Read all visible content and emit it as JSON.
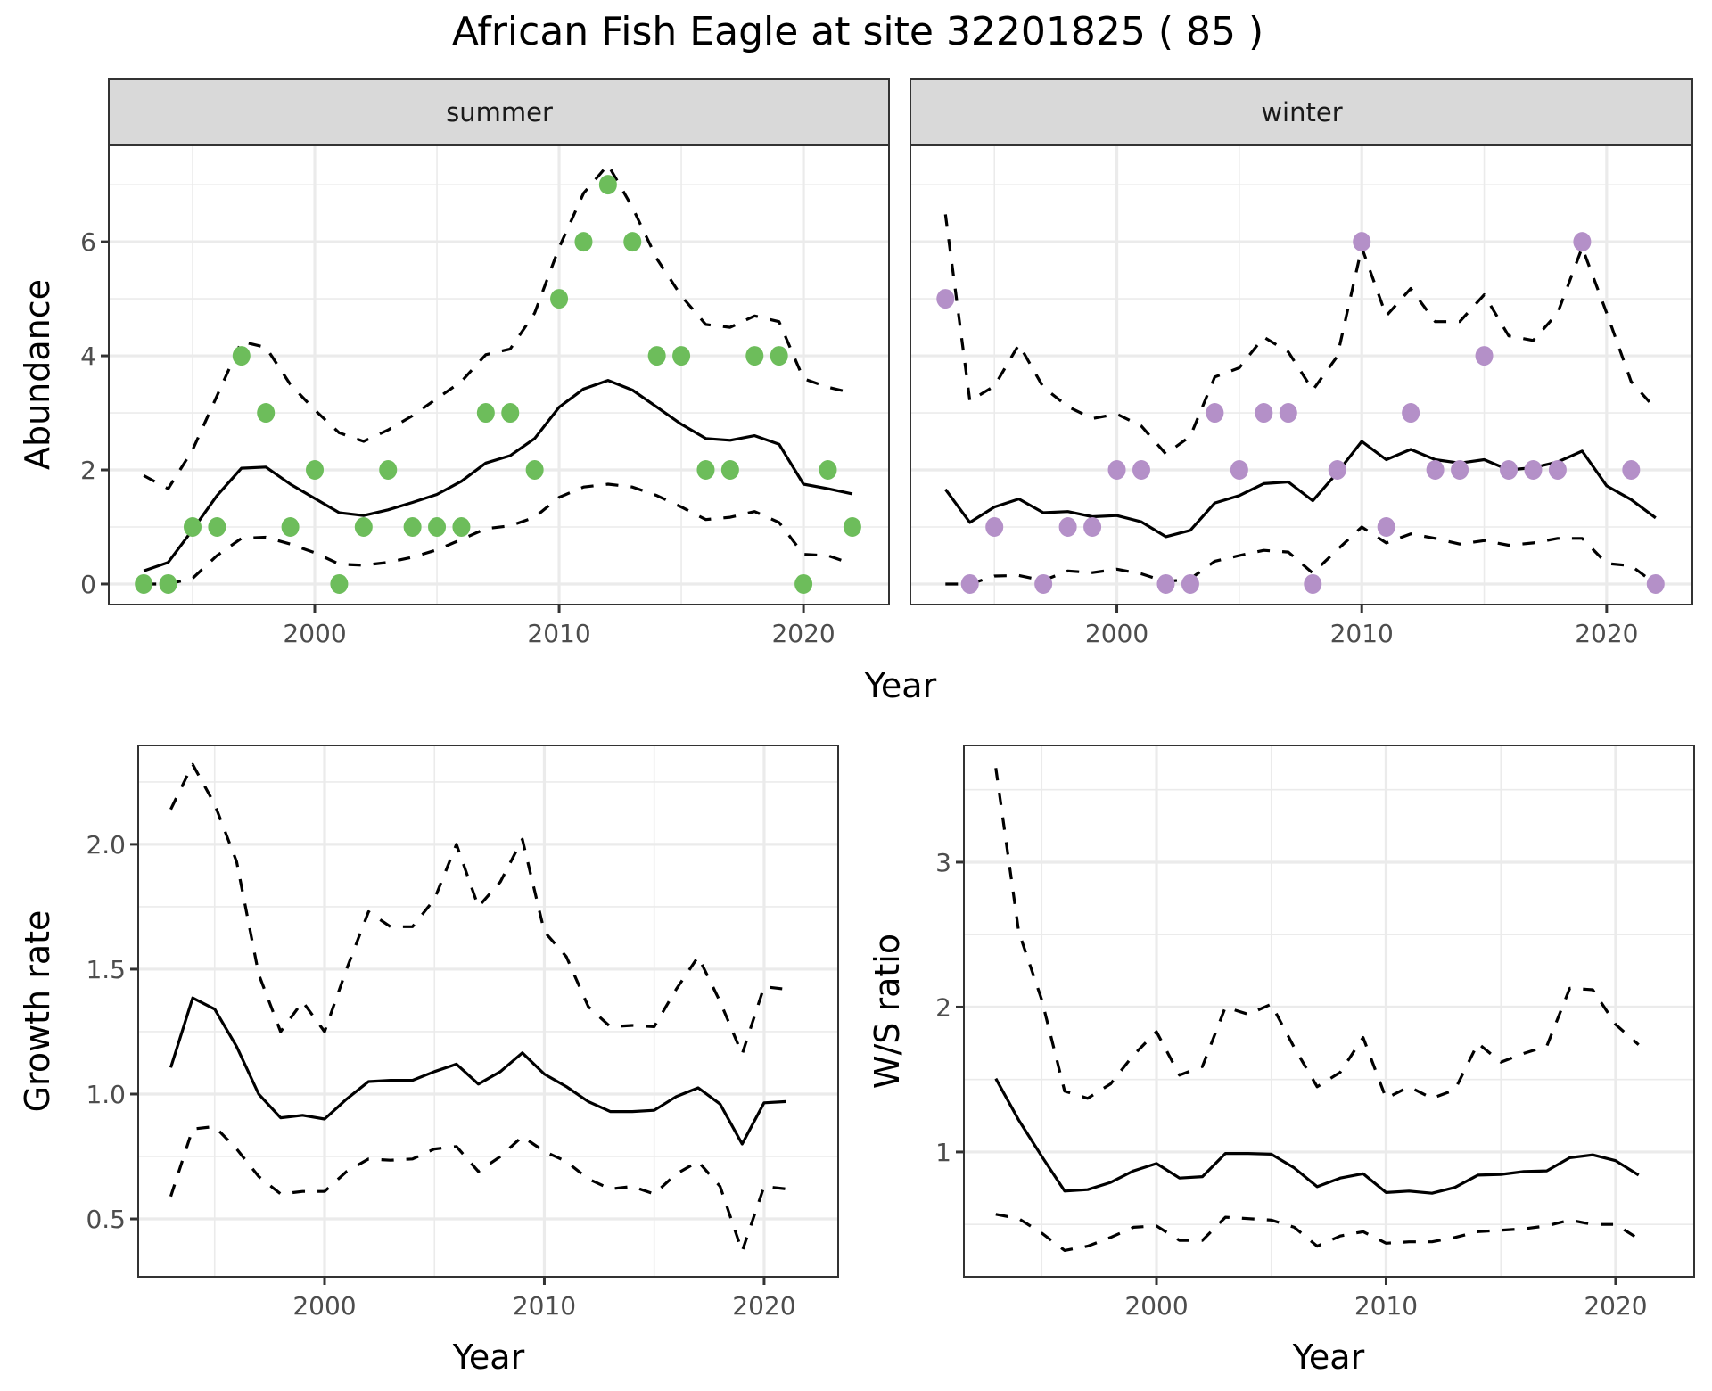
{
  "title": "African Fish Eagle at site 32201825 ( 85 )",
  "colors": {
    "summer_points": "#6DBD5B",
    "winter_points": "#B490C8",
    "lines": "#000000",
    "strip": "#D9D9D9"
  },
  "chart_data": [
    {
      "id": "abundance",
      "type": "scatter+line",
      "title": "African Fish Eagle at site 32201825 ( 85 )",
      "xlabel": "Year",
      "ylabel": "Abundance",
      "facets": [
        "summer",
        "winter"
      ],
      "xlim": [
        1991.57,
        2023.5
      ],
      "ylim": [
        -0.36,
        7.69
      ],
      "x_ticks": [
        2000,
        2010,
        2020
      ],
      "x_tick_labels": [
        "2000",
        "2010",
        "2020"
      ],
      "y_ticks": [
        0,
        2,
        4,
        6
      ],
      "y_tick_labels": [
        "0",
        "2",
        "4",
        "6"
      ],
      "grid": true,
      "legend": "none",
      "panels": [
        {
          "facet": "summer",
          "point_color": "#6DBD5B",
          "points": {
            "x": [
              1993,
              1994,
              1995,
              1996,
              1997,
              1998,
              1999,
              2000,
              2001,
              2002,
              2003,
              2004,
              2005,
              2006,
              2007,
              2008,
              2009,
              2010,
              2011,
              2012,
              2013,
              2014,
              2015,
              2016,
              2017,
              2018,
              2019,
              2020,
              2021,
              2022
            ],
            "y": [
              0,
              0,
              1,
              1,
              4,
              3,
              1,
              2,
              0,
              1,
              2,
              1,
              1,
              1,
              3,
              3,
              2,
              5,
              6,
              7,
              6,
              4,
              4,
              2,
              2,
              4,
              4,
              0,
              2,
              1
            ]
          },
          "years": [
            1993,
            1994,
            1995,
            1996,
            1997,
            1998,
            1999,
            2000,
            2001,
            2002,
            2003,
            2004,
            2005,
            2006,
            2007,
            2008,
            2009,
            2010,
            2011,
            2012,
            2013,
            2014,
            2015,
            2016,
            2017,
            2018,
            2019,
            2020,
            2021,
            2022
          ],
          "mean": [
            0.23,
            0.38,
            0.95,
            1.55,
            2.03,
            2.05,
            1.75,
            1.5,
            1.25,
            1.2,
            1.3,
            1.43,
            1.57,
            1.8,
            2.12,
            2.25,
            2.55,
            3.1,
            3.42,
            3.57,
            3.4,
            3.1,
            2.8,
            2.55,
            2.52,
            2.6,
            2.45,
            1.75,
            1.67,
            1.58
          ],
          "upper": [
            1.9,
            1.67,
            2.35,
            3.3,
            4.25,
            4.15,
            3.5,
            3.05,
            2.65,
            2.5,
            2.7,
            2.95,
            3.25,
            3.55,
            4.02,
            4.12,
            4.75,
            5.9,
            6.85,
            7.35,
            6.6,
            5.7,
            5.05,
            4.55,
            4.5,
            4.7,
            4.6,
            3.6,
            3.45,
            3.35
          ],
          "lower": [
            0.0,
            0.0,
            0.1,
            0.5,
            0.8,
            0.82,
            0.7,
            0.55,
            0.35,
            0.33,
            0.38,
            0.47,
            0.6,
            0.78,
            0.97,
            1.02,
            1.17,
            1.52,
            1.7,
            1.75,
            1.7,
            1.55,
            1.35,
            1.13,
            1.17,
            1.27,
            1.08,
            0.52,
            0.5,
            0.35
          ]
        },
        {
          "facet": "winter",
          "point_color": "#B490C8",
          "points": {
            "x": [
              1993,
              1994,
              1995,
              1997,
              1998,
              1999,
              2000,
              2001,
              2002,
              2003,
              2004,
              2005,
              2006,
              2007,
              2008,
              2009,
              2010,
              2011,
              2012,
              2013,
              2014,
              2015,
              2016,
              2017,
              2018,
              2019,
              2021,
              2022
            ],
            "y": [
              5,
              0,
              1,
              0,
              1,
              1,
              2,
              2,
              0,
              0,
              3,
              2,
              3,
              3,
              0,
              2,
              6,
              1,
              3,
              2,
              2,
              4,
              2,
              2,
              2,
              6,
              2,
              0
            ]
          },
          "years": [
            1993,
            1994,
            1995,
            1996,
            1997,
            1998,
            1999,
            2000,
            2001,
            2002,
            2003,
            2004,
            2005,
            2006,
            2007,
            2008,
            2009,
            2010,
            2011,
            2012,
            2013,
            2014,
            2015,
            2016,
            2017,
            2018,
            2019,
            2020,
            2021,
            2022
          ],
          "mean": [
            1.66,
            1.08,
            1.35,
            1.49,
            1.25,
            1.27,
            1.18,
            1.2,
            1.09,
            0.83,
            0.94,
            1.42,
            1.55,
            1.76,
            1.79,
            1.46,
            1.95,
            2.5,
            2.18,
            2.36,
            2.18,
            2.12,
            2.18,
            2.0,
            2.04,
            2.14,
            2.33,
            1.72,
            1.48,
            1.16
          ],
          "upper": [
            6.48,
            3.21,
            3.47,
            4.2,
            3.45,
            3.11,
            2.9,
            2.98,
            2.77,
            2.28,
            2.59,
            3.63,
            3.79,
            4.33,
            4.07,
            3.4,
            3.99,
            5.9,
            4.7,
            5.18,
            4.6,
            4.6,
            5.07,
            4.35,
            4.27,
            4.75,
            5.9,
            4.75,
            3.55,
            3.07
          ],
          "lower": [
            0.0,
            0.0,
            0.14,
            0.15,
            0.06,
            0.23,
            0.2,
            0.26,
            0.18,
            0.04,
            0.09,
            0.4,
            0.5,
            0.59,
            0.56,
            0.19,
            0.6,
            1.0,
            0.72,
            0.88,
            0.8,
            0.7,
            0.76,
            0.68,
            0.72,
            0.8,
            0.8,
            0.36,
            0.32,
            0.0
          ]
        }
      ]
    },
    {
      "id": "growth",
      "type": "line",
      "xlabel": "Year",
      "ylabel": "Growth rate",
      "xlim": [
        1991.52,
        2023.37
      ],
      "ylim": [
        0.268,
        2.396
      ],
      "x_ticks": [
        2000,
        2010,
        2020
      ],
      "x_tick_labels": [
        "2000",
        "2010",
        "2020"
      ],
      "y_ticks": [
        0.5,
        1.0,
        1.5,
        2.0
      ],
      "y_tick_labels": [
        "0.5",
        "1.0",
        "1.5",
        "2.0"
      ],
      "grid": true,
      "legend": "none",
      "years": [
        1993,
        1994,
        1995,
        1996,
        1997,
        1998,
        1999,
        2000,
        2001,
        2002,
        2003,
        2004,
        2005,
        2006,
        2007,
        2008,
        2009,
        2010,
        2011,
        2012,
        2013,
        2014,
        2015,
        2016,
        2017,
        2018,
        2019,
        2020,
        2021
      ],
      "mean": [
        1.106,
        1.385,
        1.34,
        1.19,
        1.0,
        0.905,
        0.915,
        0.9,
        0.98,
        1.05,
        1.055,
        1.055,
        1.09,
        1.12,
        1.04,
        1.09,
        1.165,
        1.08,
        1.03,
        0.97,
        0.93,
        0.93,
        0.935,
        0.99,
        1.025,
        0.96,
        0.8,
        0.965,
        0.97
      ],
      "upper": [
        2.14,
        2.32,
        2.16,
        1.93,
        1.48,
        1.25,
        1.37,
        1.25,
        1.5,
        1.73,
        1.67,
        1.67,
        1.78,
        2.0,
        1.75,
        1.85,
        2.02,
        1.65,
        1.55,
        1.35,
        1.27,
        1.275,
        1.27,
        1.42,
        1.55,
        1.37,
        1.16,
        1.43,
        1.42
      ],
      "lower": [
        0.59,
        0.86,
        0.87,
        0.78,
        0.67,
        0.6,
        0.61,
        0.61,
        0.69,
        0.74,
        0.735,
        0.74,
        0.78,
        0.79,
        0.69,
        0.75,
        0.83,
        0.77,
        0.73,
        0.66,
        0.62,
        0.63,
        0.6,
        0.68,
        0.73,
        0.63,
        0.37,
        0.63,
        0.62
      ]
    },
    {
      "id": "ws_ratio",
      "type": "line",
      "xlabel": "Year",
      "ylabel": "W/S ratio",
      "xlim": [
        1991.61,
        2023.42
      ],
      "ylim": [
        0.138,
        3.806
      ],
      "x_ticks": [
        2000,
        2010,
        2020
      ],
      "x_tick_labels": [
        "2000",
        "2010",
        "2020"
      ],
      "y_ticks": [
        1,
        2,
        3
      ],
      "y_tick_labels": [
        "1",
        "2",
        "3"
      ],
      "grid": true,
      "legend": "none",
      "years": [
        1993,
        1994,
        1995,
        1996,
        1997,
        1998,
        1999,
        2000,
        2001,
        2002,
        2003,
        2004,
        2005,
        2006,
        2007,
        2008,
        2009,
        2010,
        2011,
        2012,
        2013,
        2014,
        2015,
        2016,
        2017,
        2018,
        2019,
        2020,
        2021
      ],
      "mean": [
        1.506,
        1.22,
        0.97,
        0.73,
        0.74,
        0.79,
        0.87,
        0.92,
        0.82,
        0.83,
        0.99,
        0.99,
        0.985,
        0.89,
        0.76,
        0.82,
        0.85,
        0.72,
        0.73,
        0.715,
        0.755,
        0.84,
        0.845,
        0.865,
        0.87,
        0.96,
        0.98,
        0.94,
        0.84
      ],
      "upper": [
        3.65,
        2.52,
        2.05,
        1.42,
        1.37,
        1.47,
        1.67,
        1.83,
        1.53,
        1.59,
        2.0,
        1.95,
        2.02,
        1.72,
        1.45,
        1.55,
        1.79,
        1.37,
        1.45,
        1.37,
        1.43,
        1.75,
        1.62,
        1.68,
        1.73,
        2.13,
        2.12,
        1.88,
        1.74
      ],
      "lower": [
        0.57,
        0.54,
        0.44,
        0.32,
        0.35,
        0.41,
        0.48,
        0.49,
        0.39,
        0.39,
        0.55,
        0.54,
        0.53,
        0.48,
        0.35,
        0.42,
        0.45,
        0.37,
        0.38,
        0.38,
        0.41,
        0.45,
        0.46,
        0.47,
        0.49,
        0.53,
        0.5,
        0.5,
        0.4
      ]
    }
  ]
}
